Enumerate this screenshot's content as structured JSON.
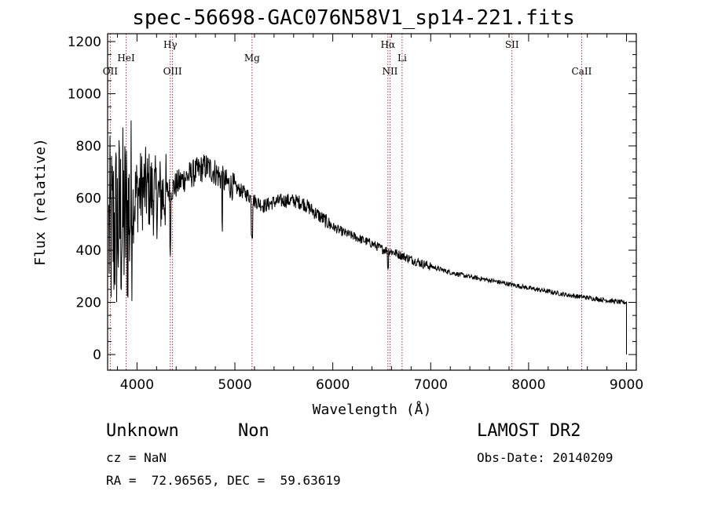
{
  "chart_data": {
    "type": "line",
    "title": "spec-56698-GAC076N58V1_sp14-221.fits",
    "xlabel": "Wavelength (Å)",
    "ylabel": "Flux (relative)",
    "xlim": [
      3700,
      9100
    ],
    "ylim": [
      -60,
      1230
    ],
    "xticks": [
      4000,
      5000,
      6000,
      7000,
      8000,
      9000
    ],
    "yticks": [
      0,
      200,
      400,
      600,
      800,
      1000,
      1200
    ],
    "series_color": "#000000",
    "line_color": "#b03030",
    "lines": [
      {
        "label": "OII",
        "x": 3727,
        "row": 3
      },
      {
        "label": "HeI",
        "x": 3889,
        "row": 2
      },
      {
        "label": "Hγ",
        "x": 4340,
        "row": 1
      },
      {
        "label": "OIII",
        "x": 4363,
        "row": 3
      },
      {
        "label": "Mg",
        "x": 5175,
        "row": 2
      },
      {
        "label": "Hα",
        "x": 6563,
        "row": 1
      },
      {
        "label": "NII",
        "x": 6584,
        "row": 3
      },
      {
        "label": "Li",
        "x": 6708,
        "row": 2
      },
      {
        "label": "SII",
        "x": 7830,
        "row": 1
      },
      {
        "label": "CaII",
        "x": 8542,
        "row": 3
      }
    ],
    "continuum": [
      [
        3700,
        450
      ],
      [
        3800,
        500
      ],
      [
        3900,
        520
      ],
      [
        4000,
        620
      ],
      [
        4100,
        640
      ],
      [
        4200,
        600
      ],
      [
        4300,
        620
      ],
      [
        4400,
        650
      ],
      [
        4500,
        680
      ],
      [
        4600,
        700
      ],
      [
        4700,
        720
      ],
      [
        4800,
        700
      ],
      [
        4900,
        660
      ],
      [
        5000,
        640
      ],
      [
        5100,
        620
      ],
      [
        5200,
        590
      ],
      [
        5300,
        570
      ],
      [
        5400,
        585
      ],
      [
        5500,
        590
      ],
      [
        5600,
        590
      ],
      [
        5700,
        580
      ],
      [
        5800,
        550
      ],
      [
        5900,
        520
      ],
      [
        6000,
        490
      ],
      [
        6100,
        470
      ],
      [
        6200,
        455
      ],
      [
        6300,
        440
      ],
      [
        6400,
        425
      ],
      [
        6500,
        405
      ],
      [
        6600,
        395
      ],
      [
        6700,
        380
      ],
      [
        6800,
        365
      ],
      [
        6900,
        350
      ],
      [
        7000,
        338
      ],
      [
        7200,
        315
      ],
      [
        7400,
        298
      ],
      [
        7600,
        285
      ],
      [
        7800,
        270
      ],
      [
        8000,
        255
      ],
      [
        8200,
        242
      ],
      [
        8400,
        228
      ],
      [
        8600,
        218
      ],
      [
        8800,
        208
      ],
      [
        8950,
        200
      ],
      [
        9000,
        200
      ]
    ]
  },
  "info": {
    "object_class": "Unknown",
    "subclass": "Non",
    "survey": "LAMOST DR2",
    "cz": "cz = NaN",
    "obs_date": "Obs-Date: 20140209",
    "coords": "RA =  72.96565, DEC =  59.63619"
  }
}
